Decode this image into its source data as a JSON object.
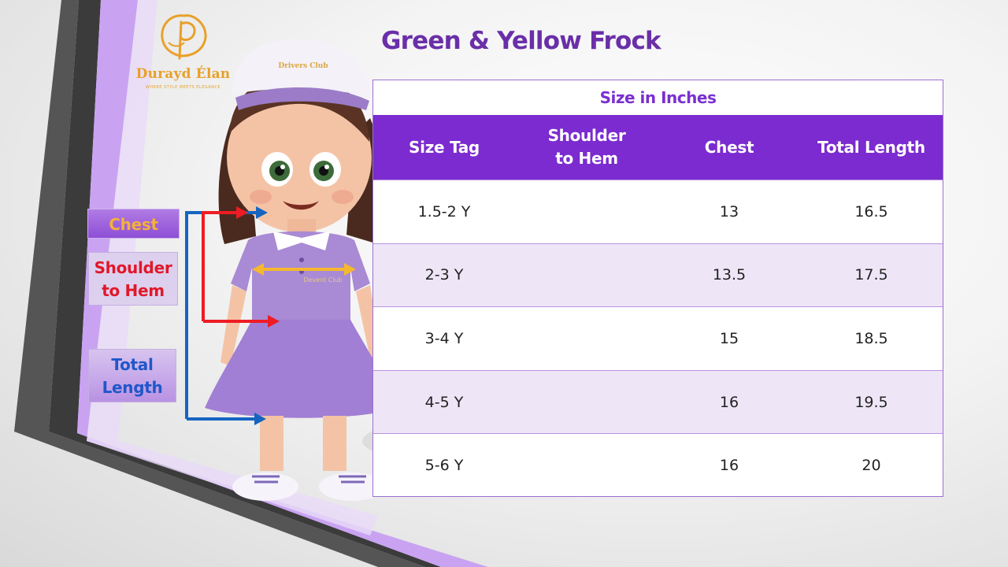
{
  "brand": {
    "name": "Durayd Élan",
    "tagline": "WHERE STYLE MEETS ELEGANCE",
    "cap_logo_text": "Drivers Club",
    "shirt_logo_text": "Devent Club",
    "accent_color": "#e8a02a"
  },
  "page_title": "Green & Yellow Frock",
  "size_table": {
    "caption": "Size in Inches",
    "header_color": "#7b2bcf",
    "columns": [
      "Size Tag",
      "Shoulder to Hem",
      "Chest",
      "Total Length"
    ],
    "rows": [
      {
        "size": "1.5-2 Y",
        "shoulder_to_hem": "",
        "chest": "13",
        "total_length": "16.5"
      },
      {
        "size": "2-3 Y",
        "shoulder_to_hem": "",
        "chest": "13.5",
        "total_length": "17.5"
      },
      {
        "size": "3-4 Y",
        "shoulder_to_hem": "",
        "chest": "15",
        "total_length": "18.5"
      },
      {
        "size": "4-5 Y",
        "shoulder_to_hem": "",
        "chest": "16",
        "total_length": "19.5"
      },
      {
        "size": "5-6 Y",
        "shoulder_to_hem": "",
        "chest": "16",
        "total_length": "20"
      }
    ]
  },
  "legend": {
    "chest": "Chest",
    "shoulder_to_hem_line1": "Shoulder",
    "shoulder_to_hem_line2": "to Hem",
    "total_length_line1": "Total",
    "total_length_line2": "Length"
  },
  "measurement_colors": {
    "chest": "#f5b82e",
    "shoulder_to_hem": "#ee1c24",
    "total_length": "#1565c0"
  }
}
